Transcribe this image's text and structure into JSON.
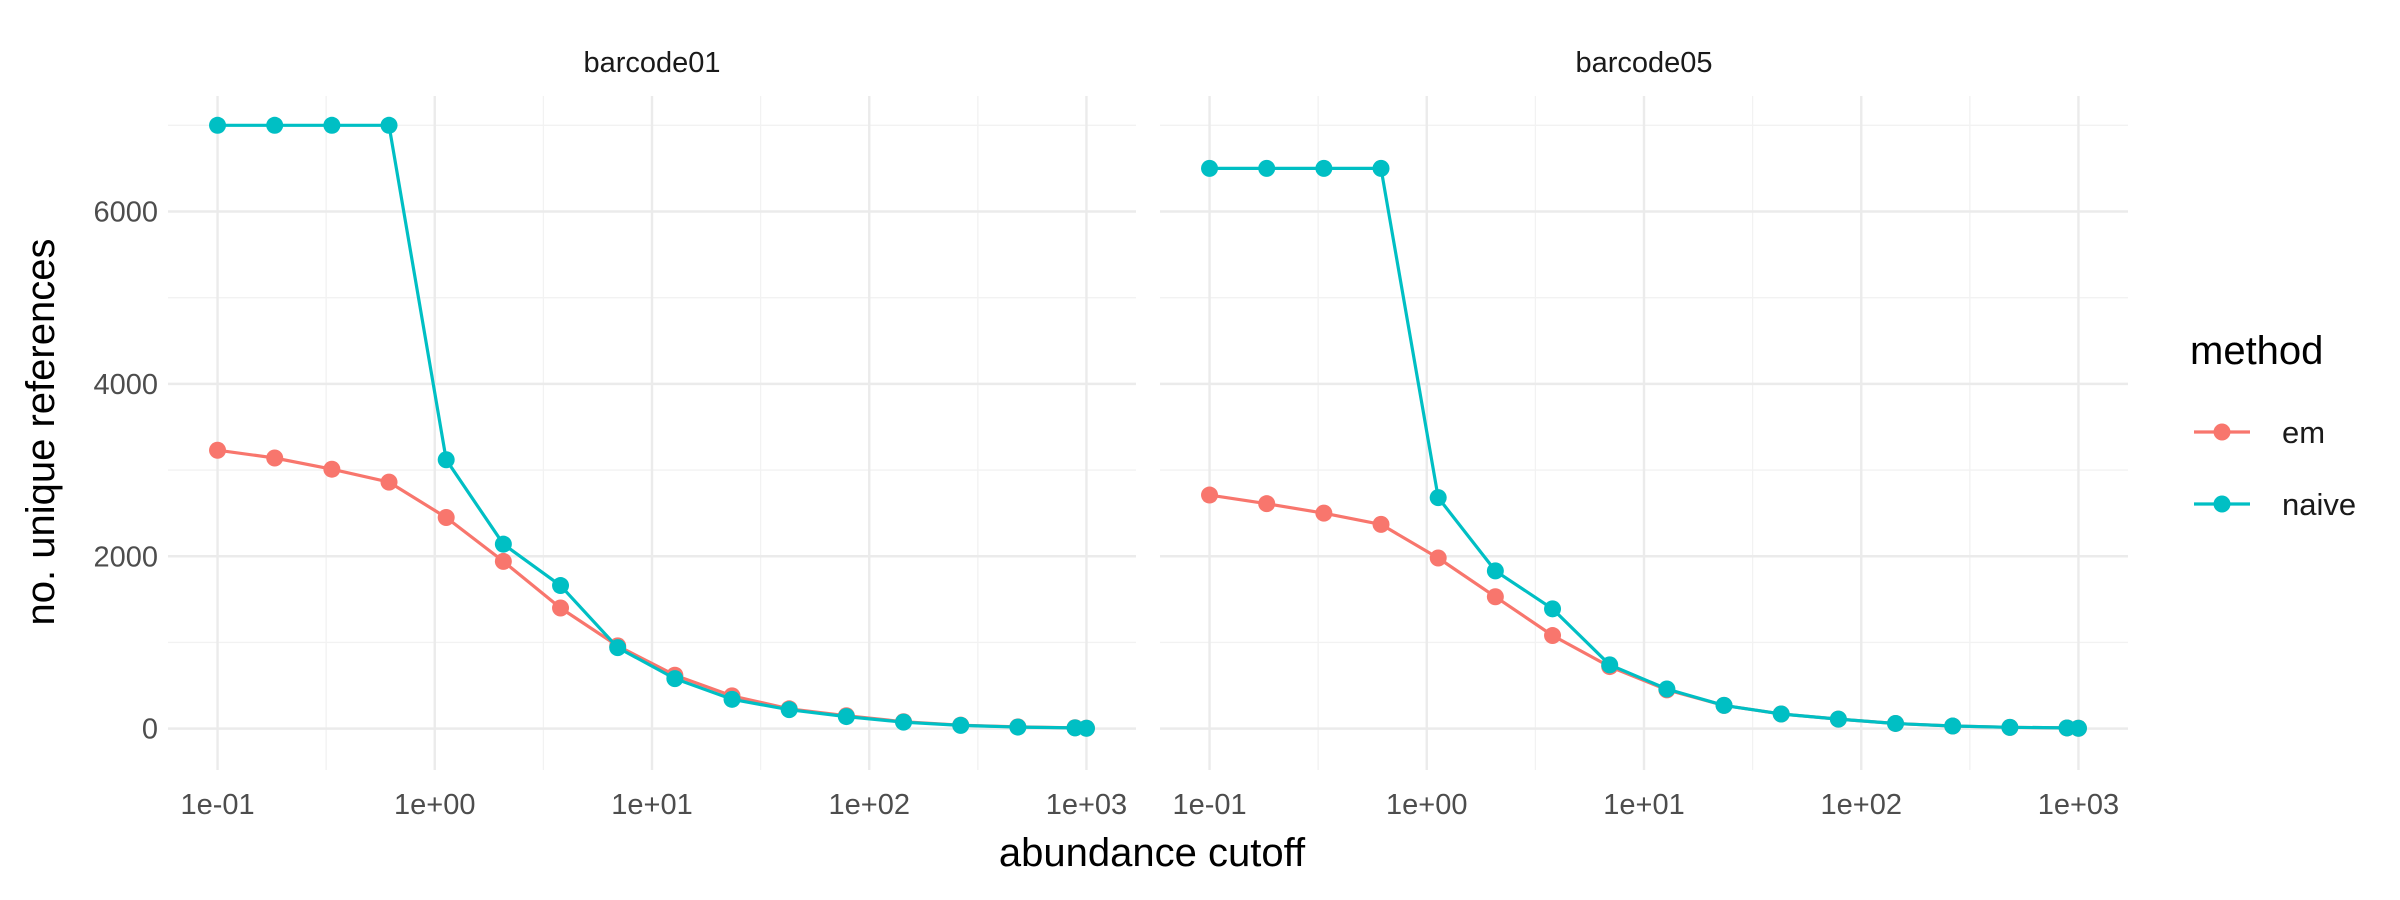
{
  "chart_data": {
    "type": "line",
    "xlabel": "abundance cutoff",
    "ylabel": "no. unique references",
    "x_scale": "log10",
    "xlim": [
      0.1,
      1000
    ],
    "ylim": [
      0,
      7000
    ],
    "x_ticks": [
      0.1,
      1,
      10,
      100,
      1000
    ],
    "x_tick_labels": [
      "1e-01",
      "1e+00",
      "1e+01",
      "1e+02",
      "1e+03"
    ],
    "y_ticks": [
      0,
      2000,
      4000,
      6000
    ],
    "y_tick_labels": [
      "0",
      "2000",
      "4000",
      "6000"
    ],
    "grid": true,
    "legend": {
      "title": "method",
      "position": "right",
      "entries": [
        "em",
        "naive"
      ]
    },
    "colors": {
      "em": "#F8766D",
      "naive": "#00BFC4"
    },
    "x": [
      0.1,
      0.1833,
      0.336,
      0.6158,
      1.1288,
      2.069,
      3.7927,
      6.9519,
      12.7427,
      23.3572,
      42.8133,
      78.476,
      143.845,
      263.6651,
      483.293,
      885.8668,
      1000
    ],
    "panels": [
      {
        "strip": "barcode01",
        "series": [
          {
            "name": "em",
            "values": [
              3230,
              3140,
              3010,
              2860,
              2450,
              1940,
              1400,
              960,
              620,
              380,
              230,
              150,
              80,
              40,
              20,
              10,
              5
            ]
          },
          {
            "name": "naive",
            "values": [
              7000,
              7000,
              7000,
              7000,
              3120,
              2140,
              1660,
              940,
              580,
              340,
              220,
              140,
              75,
              38,
              18,
              9,
              4
            ]
          }
        ]
      },
      {
        "strip": "barcode05",
        "series": [
          {
            "name": "em",
            "values": [
              2710,
              2610,
              2500,
              2370,
              1980,
              1530,
              1080,
              720,
              450,
              270,
              170,
              110,
              60,
              30,
              15,
              8,
              4
            ]
          },
          {
            "name": "naive",
            "values": [
              6500,
              6500,
              6500,
              6500,
              2680,
              1830,
              1390,
              740,
              460,
              270,
              170,
              110,
              60,
              30,
              15,
              8,
              4
            ]
          }
        ]
      }
    ]
  }
}
